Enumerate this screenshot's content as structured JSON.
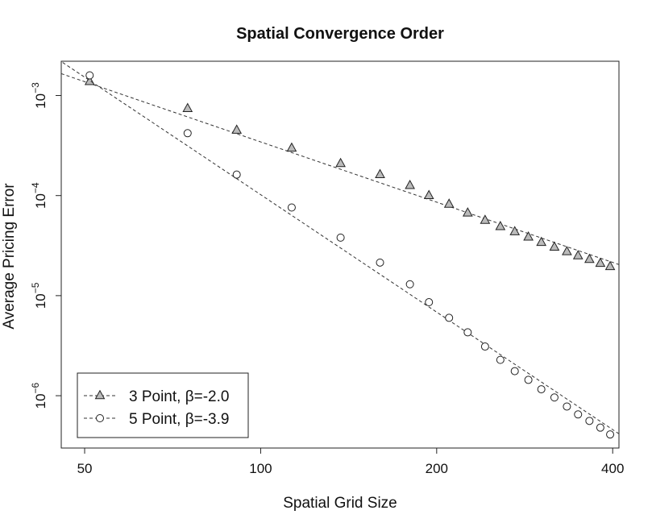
{
  "chart_data": {
    "type": "line",
    "title": "Spatial Convergence Order",
    "xlabel": "Spatial Grid Size",
    "ylabel": "Average Pricing Error",
    "x_scale": "log",
    "y_scale": "log",
    "xlim": [
      45.6,
      410
    ],
    "ylim": [
      3e-07,
      0.0022
    ],
    "x_ticks": [
      50,
      100,
      200,
      400
    ],
    "x_tick_labels": [
      "50",
      "100",
      "200",
      "400"
    ],
    "y_ticks": [
      1e-06,
      1e-05,
      0.0001,
      0.001
    ],
    "y_tick_labels": [
      {
        "base": "10",
        "exp": "−6"
      },
      {
        "base": "10",
        "exp": "−5"
      },
      {
        "base": "10",
        "exp": "−4"
      },
      {
        "base": "10",
        "exp": "−3"
      }
    ],
    "grid": false,
    "legend_position": "bottom-left",
    "legend": [
      "3 Point, β=-2.0",
      "5 Point, β=-3.9"
    ],
    "series": [
      {
        "name": "3 Point, β=-2.0",
        "marker": "triangle",
        "slope": -2.0,
        "x": [
          51,
          75,
          91,
          113,
          137,
          160,
          180,
          194,
          210,
          226,
          242,
          257,
          272,
          287,
          302,
          318,
          334,
          349,
          365,
          381,
          396
        ],
        "y": [
          0.00138,
          0.00074,
          0.00045,
          0.000298,
          0.000209,
          0.000162,
          0.000126,
          0.0001,
          8.2e-05,
          6.7e-05,
          5.65e-05,
          4.9e-05,
          4.35e-05,
          3.85e-05,
          3.4e-05,
          3.05e-05,
          2.75e-05,
          2.5e-05,
          2.3e-05,
          2.1e-05,
          1.95e-05
        ]
      },
      {
        "name": "5 Point, β=-3.9",
        "marker": "circle",
        "slope": -3.9,
        "x": [
          51,
          75,
          91,
          113,
          137,
          160,
          180,
          194,
          210,
          226,
          242,
          257,
          272,
          287,
          302,
          318,
          334,
          349,
          365,
          381,
          396
        ],
        "y": [
          0.00159,
          0.00042,
          0.000162,
          7.6e-05,
          3.8e-05,
          2.14e-05,
          1.3e-05,
          8.6e-06,
          6e-06,
          4.3e-06,
          3.1e-06,
          2.28e-06,
          1.76e-06,
          1.44e-06,
          1.16e-06,
          9.6e-07,
          7.8e-07,
          6.5e-07,
          5.6e-07,
          4.8e-07,
          4.1e-07
        ]
      }
    ]
  }
}
